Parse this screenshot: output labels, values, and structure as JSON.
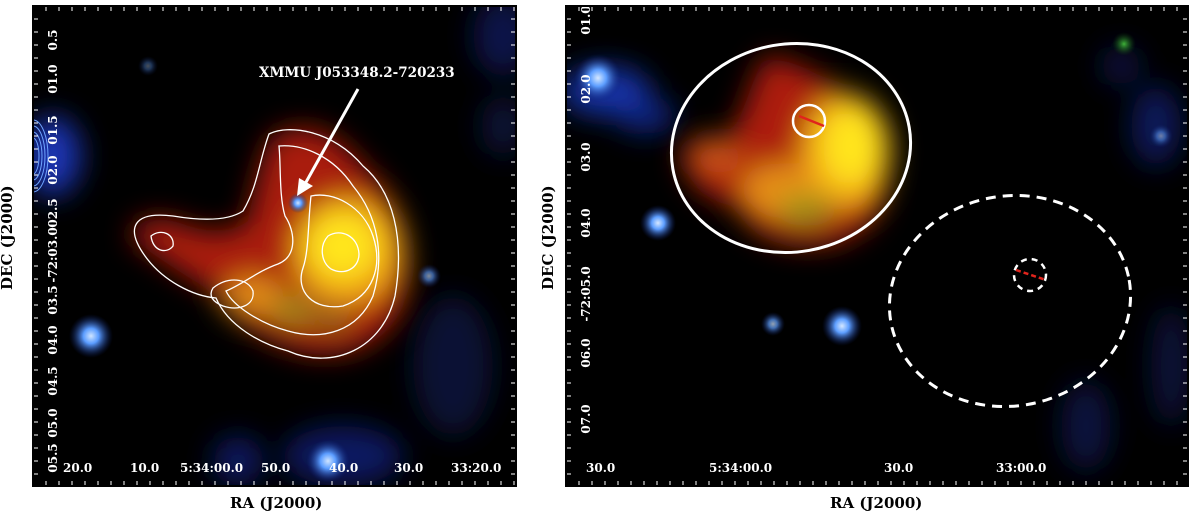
{
  "left_panel": {
    "annotation": "XMMU J053348.2-720233",
    "xaxis_title": "RA (J2000)",
    "yaxis_title": "DEC (J2000)",
    "xticks": [
      "20.0",
      "10.0",
      "5:34:00.0",
      "50.0",
      "40.0",
      "30.0",
      "33:20.0"
    ],
    "yticks": [
      "0.5",
      "01.0",
      "01.5",
      "02.0",
      "02.5",
      "-72:03.0",
      "03.5",
      "04.0",
      "04.5",
      "05.0",
      "05.5"
    ]
  },
  "right_panel": {
    "xaxis_title": "RA (J2000)",
    "yaxis_title": "DEC (J2000)",
    "xticks": [
      "30.0",
      "5:34:00.0",
      "30.0",
      "33:00.0"
    ],
    "yticks": [
      "01.0",
      "02.0",
      "03.0",
      "04.0",
      "-72:05.0",
      "06.0",
      "07.0"
    ]
  },
  "colors": {
    "background": "#000000",
    "frame": "#000000",
    "contours": "#ffffff",
    "arrow": "#ffffff",
    "source_region": "#ffffff",
    "background_region": "#ffffff",
    "position_marker": "#e0241c",
    "emission_core": "#ffe81a",
    "emission_edge": "#c0260e",
    "point_sources": "#3f7fff"
  },
  "regions": {
    "source": "solid-ellipse",
    "background": "dashed-ellipse"
  }
}
